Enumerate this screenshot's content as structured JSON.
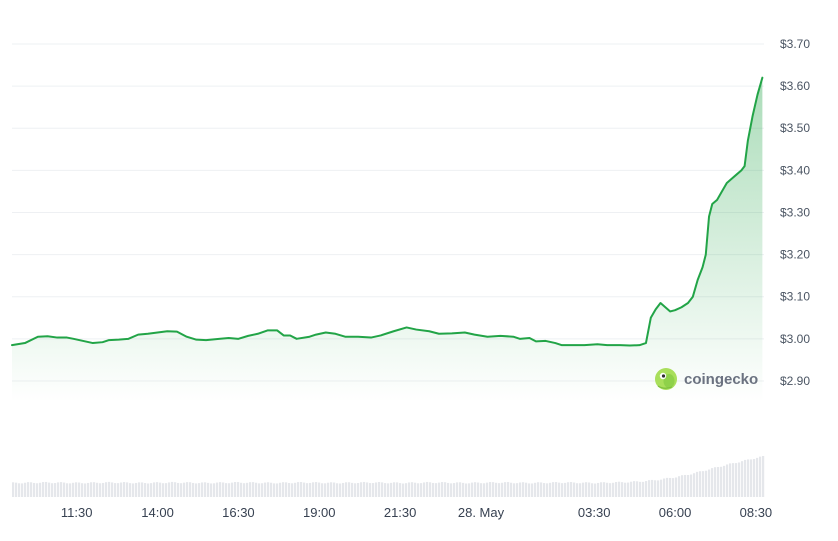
{
  "chart_data": {
    "type": "area",
    "title": "",
    "xlabel": "",
    "ylabel": "",
    "y_currency_prefix": "$",
    "ylim": [
      2.85,
      3.7
    ],
    "y_ticks": [
      "$3.70",
      "$3.60",
      "$3.50",
      "$3.40",
      "$3.30",
      "$3.20",
      "$3.10",
      "$3.00",
      "$2.90"
    ],
    "y_tick_values": [
      3.7,
      3.6,
      3.5,
      3.4,
      3.3,
      3.2,
      3.1,
      3.0,
      2.9
    ],
    "x_ticks": [
      "11:30",
      "14:00",
      "16:30",
      "19:00",
      "21:30",
      "28. May",
      "03:30",
      "06:00",
      "08:30"
    ],
    "x_tick_hours": [
      11.5,
      14.0,
      16.5,
      19.0,
      21.5,
      24.0,
      27.5,
      30.0,
      32.5
    ],
    "xlim_hours": [
      9.5,
      32.75
    ],
    "grid": "horizontal",
    "line_color": "#22a447",
    "fill_color": "#22a447",
    "watermark": "coingecko",
    "series": [
      {
        "points": [
          [
            9.5,
            2.985
          ],
          [
            9.9,
            2.99
          ],
          [
            10.3,
            3.005
          ],
          [
            10.6,
            3.006
          ],
          [
            10.9,
            3.003
          ],
          [
            11.2,
            3.003
          ],
          [
            11.4,
            3.0
          ],
          [
            11.7,
            2.995
          ],
          [
            12.0,
            2.99
          ],
          [
            12.3,
            2.992
          ],
          [
            12.5,
            2.997
          ],
          [
            12.8,
            2.998
          ],
          [
            13.1,
            3.0
          ],
          [
            13.4,
            3.01
          ],
          [
            13.7,
            3.012
          ],
          [
            14.0,
            3.015
          ],
          [
            14.3,
            3.018
          ],
          [
            14.6,
            3.017
          ],
          [
            14.9,
            3.005
          ],
          [
            15.2,
            2.998
          ],
          [
            15.5,
            2.997
          ],
          [
            15.9,
            3.0
          ],
          [
            16.2,
            3.002
          ],
          [
            16.5,
            3.0
          ],
          [
            16.8,
            3.007
          ],
          [
            17.1,
            3.012
          ],
          [
            17.4,
            3.02
          ],
          [
            17.7,
            3.02
          ],
          [
            17.9,
            3.008
          ],
          [
            18.1,
            3.008
          ],
          [
            18.3,
            3.0
          ],
          [
            18.7,
            3.005
          ],
          [
            18.9,
            3.01
          ],
          [
            19.2,
            3.015
          ],
          [
            19.5,
            3.012
          ],
          [
            19.8,
            3.005
          ],
          [
            20.2,
            3.005
          ],
          [
            20.6,
            3.003
          ],
          [
            20.9,
            3.008
          ],
          [
            21.3,
            3.018
          ],
          [
            21.7,
            3.027
          ],
          [
            22.0,
            3.022
          ],
          [
            22.4,
            3.018
          ],
          [
            22.7,
            3.012
          ],
          [
            23.1,
            3.013
          ],
          [
            23.5,
            3.015
          ],
          [
            23.8,
            3.01
          ],
          [
            24.2,
            3.005
          ],
          [
            24.6,
            3.007
          ],
          [
            25.0,
            3.005
          ],
          [
            25.2,
            3.0
          ],
          [
            25.5,
            3.002
          ],
          [
            25.7,
            2.994
          ],
          [
            26.0,
            2.995
          ],
          [
            26.3,
            2.99
          ],
          [
            26.5,
            2.985
          ],
          [
            26.8,
            2.985
          ],
          [
            27.2,
            2.985
          ],
          [
            27.6,
            2.987
          ],
          [
            27.9,
            2.985
          ],
          [
            28.3,
            2.985
          ],
          [
            28.6,
            2.984
          ],
          [
            28.9,
            2.985
          ],
          [
            29.1,
            2.99
          ],
          [
            29.25,
            3.05
          ],
          [
            29.4,
            3.07
          ],
          [
            29.55,
            3.085
          ],
          [
            29.7,
            3.075
          ],
          [
            29.85,
            3.065
          ],
          [
            30.0,
            3.068
          ],
          [
            30.2,
            3.075
          ],
          [
            30.4,
            3.085
          ],
          [
            30.55,
            3.1
          ],
          [
            30.7,
            3.14
          ],
          [
            30.85,
            3.17
          ],
          [
            30.95,
            3.2
          ],
          [
            31.05,
            3.29
          ],
          [
            31.15,
            3.32
          ],
          [
            31.3,
            3.33
          ],
          [
            31.45,
            3.35
          ],
          [
            31.6,
            3.37
          ],
          [
            31.75,
            3.38
          ],
          [
            31.9,
            3.39
          ],
          [
            32.05,
            3.4
          ],
          [
            32.15,
            3.41
          ],
          [
            32.25,
            3.47
          ],
          [
            32.4,
            3.53
          ],
          [
            32.55,
            3.58
          ],
          [
            32.7,
            3.62
          ]
        ]
      }
    ],
    "volume": {
      "range": [
        0,
        1
      ],
      "points": [
        [
          9.5,
          0.32
        ],
        [
          10.5,
          0.33
        ],
        [
          11.5,
          0.32
        ],
        [
          12.5,
          0.33
        ],
        [
          13.5,
          0.32
        ],
        [
          14.5,
          0.33
        ],
        [
          15.5,
          0.32
        ],
        [
          16.5,
          0.33
        ],
        [
          17.5,
          0.32
        ],
        [
          18.5,
          0.33
        ],
        [
          19.5,
          0.32
        ],
        [
          20.5,
          0.33
        ],
        [
          21.5,
          0.32
        ],
        [
          22.5,
          0.33
        ],
        [
          23.5,
          0.32
        ],
        [
          24.5,
          0.33
        ],
        [
          25.5,
          0.32
        ],
        [
          26.5,
          0.33
        ],
        [
          27.5,
          0.32
        ],
        [
          28.5,
          0.34
        ],
        [
          29.0,
          0.36
        ],
        [
          29.5,
          0.4
        ],
        [
          30.0,
          0.46
        ],
        [
          30.5,
          0.54
        ],
        [
          31.0,
          0.64
        ],
        [
          31.5,
          0.74
        ],
        [
          32.0,
          0.83
        ],
        [
          32.5,
          0.92
        ],
        [
          32.7,
          0.95
        ]
      ]
    }
  }
}
